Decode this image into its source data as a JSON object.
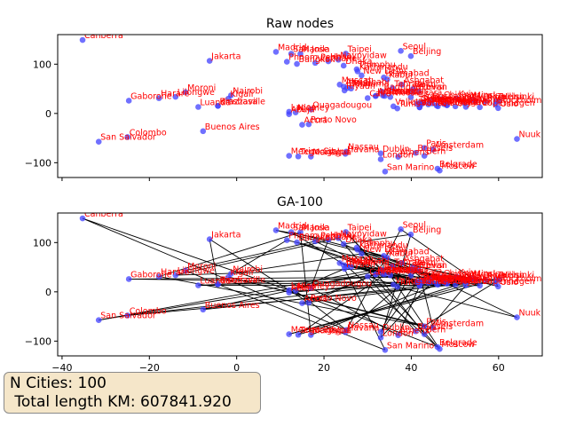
{
  "info": {
    "n_cities": "N Cities: 100",
    "total_length": " Total length KM: 607841.920"
  },
  "chart_data": [
    {
      "type": "scatter",
      "title": "Raw nodes",
      "xlim": [
        -41,
        70
      ],
      "ylim": [
        -130,
        160
      ],
      "xticks": [
        -40,
        -20,
        0,
        20,
        40,
        60
      ],
      "yticks": [
        -100,
        0,
        100
      ],
      "show_xtick_labels": false,
      "point_color": "#4040ff",
      "label_color": "#ff0000",
      "show_route": false
    },
    {
      "type": "scatter",
      "title": "GA-100",
      "xlim": [
        -41,
        70
      ],
      "ylim": [
        -130,
        160
      ],
      "xticks": [
        -40,
        -20,
        0,
        20,
        40,
        60
      ],
      "xtick_labels": [
        "−40",
        "−20",
        "0",
        "20",
        "40",
        "60"
      ],
      "yticks": [
        -100,
        0,
        100
      ],
      "show_xtick_labels": true,
      "point_color": "#4040ff",
      "label_color": "#ff0000",
      "route_color": "#000000",
      "show_route": true
    }
  ],
  "points": [
    {
      "name": "Canberra",
      "x": -35.3,
      "y": 149.1
    },
    {
      "name": "Jakarta",
      "x": -6.2,
      "y": 106.8
    },
    {
      "name": "Moroni",
      "x": -11.7,
      "y": 43.3
    },
    {
      "name": "Nairobi",
      "x": -1.3,
      "y": 36.8
    },
    {
      "name": "Lilongwe",
      "x": -14.0,
      "y": 33.8
    },
    {
      "name": "Harare",
      "x": -17.8,
      "y": 31.0
    },
    {
      "name": "Gaborone",
      "x": -24.7,
      "y": 25.9
    },
    {
      "name": "Kigali",
      "x": -1.9,
      "y": 30.1
    },
    {
      "name": "Luanda",
      "x": -8.8,
      "y": 13.2
    },
    {
      "name": "Brazzaville",
      "x": -4.3,
      "y": 15.3
    },
    {
      "name": "Kinshasa",
      "x": -4.3,
      "y": 15.3
    },
    {
      "name": "Buenos Aires",
      "x": -7.7,
      "y": -36.0
    },
    {
      "name": "Colombo",
      "x": -25.0,
      "y": -47.9
    },
    {
      "name": "San Salvador",
      "x": -31.6,
      "y": -57.4
    },
    {
      "name": "Madrid",
      "x": 9.0,
      "y": 125.0
    },
    {
      "name": "San Jose",
      "x": 12.5,
      "y": 121.2
    },
    {
      "name": "Phnom Penh",
      "x": 11.5,
      "y": 104.9
    },
    {
      "name": "Bangkok",
      "x": 13.8,
      "y": 100.5
    },
    {
      "name": "Manila",
      "x": 14.6,
      "y": 121.0
    },
    {
      "name": "Vientiane",
      "x": 18.0,
      "y": 102.6
    },
    {
      "name": "Hanoi",
      "x": 21.0,
      "y": 105.8
    },
    {
      "name": "Taipei",
      "x": 25.0,
      "y": 121.5
    },
    {
      "name": "Naypyidaw",
      "x": 23.3,
      "y": 109.0
    },
    {
      "name": "Dhaka",
      "x": 24.5,
      "y": 97.0
    },
    {
      "name": "Thimphu",
      "x": 27.5,
      "y": 89.6
    },
    {
      "name": "Kathmandu",
      "x": 27.7,
      "y": 85.3
    },
    {
      "name": "New Delhi",
      "x": 28.6,
      "y": 77.2
    },
    {
      "name": "Islamabad",
      "x": 33.7,
      "y": 73.0
    },
    {
      "name": "Kabul",
      "x": 34.5,
      "y": 69.2
    },
    {
      "name": "Seoul",
      "x": 37.6,
      "y": 127.0
    },
    {
      "name": "Beijing",
      "x": 39.9,
      "y": 116.4
    },
    {
      "name": "Abu Dhabi",
      "x": 24.5,
      "y": 54.4
    },
    {
      "name": "Muscat",
      "x": 23.6,
      "y": 58.6
    },
    {
      "name": "Doha",
      "x": 25.3,
      "y": 51.5
    },
    {
      "name": "Riyadh",
      "x": 24.7,
      "y": 46.7
    },
    {
      "name": "Manama",
      "x": 26.2,
      "y": 50.6
    },
    {
      "name": "Baghdad",
      "x": 33.3,
      "y": 44.4
    },
    {
      "name": "Ashgabat",
      "x": 37.9,
      "y": 58.4
    },
    {
      "name": "Tehran",
      "x": 35.7,
      "y": 51.4
    },
    {
      "name": "Yerevan",
      "x": 40.2,
      "y": 44.5
    },
    {
      "name": "Tbilisi",
      "x": 41.7,
      "y": 44.8
    },
    {
      "name": "Baku",
      "x": 40.4,
      "y": 49.9
    },
    {
      "name": "Jerusalem",
      "x": 31.8,
      "y": 35.2
    },
    {
      "name": "Amman",
      "x": 31.9,
      "y": 35.9
    },
    {
      "name": "Beirut",
      "x": 33.9,
      "y": 35.5
    },
    {
      "name": "Damascus",
      "x": 33.5,
      "y": 36.3
    },
    {
      "name": "Nicosia",
      "x": 35.2,
      "y": 33.4
    },
    {
      "name": "Ankara",
      "x": 39.9,
      "y": 32.9
    },
    {
      "name": "Cairo",
      "x": 30.0,
      "y": 31.2
    },
    {
      "name": "Bucharest",
      "x": 44.4,
      "y": 26.1
    },
    {
      "name": "Sofia",
      "x": 42.7,
      "y": 23.3
    },
    {
      "name": "Skopje",
      "x": 42.0,
      "y": 21.4
    },
    {
      "name": "Belgrade",
      "x": 44.8,
      "y": 20.5
    },
    {
      "name": "Chisinau",
      "x": 47.0,
      "y": 28.9
    },
    {
      "name": "Kyiv",
      "x": 50.4,
      "y": 30.5
    },
    {
      "name": "Minsk",
      "x": 53.9,
      "y": 27.6
    },
    {
      "name": "Vilnius",
      "x": 54.7,
      "y": 25.3
    },
    {
      "name": "Riga",
      "x": 56.9,
      "y": 24.1
    },
    {
      "name": "Tallinn",
      "x": 59.4,
      "y": 24.7
    },
    {
      "name": "Helsinki",
      "x": 60.2,
      "y": 24.9
    },
    {
      "name": "Stockholm",
      "x": 59.3,
      "y": 18.1
    },
    {
      "name": "Copenhagen",
      "x": 55.7,
      "y": 12.6
    },
    {
      "name": "Oslo",
      "x": 59.9,
      "y": 10.8
    },
    {
      "name": "Warsaw",
      "x": 52.2,
      "y": 21.0
    },
    {
      "name": "Budapest",
      "x": 47.5,
      "y": 19.0
    },
    {
      "name": "Bratislava",
      "x": 48.1,
      "y": 17.1
    },
    {
      "name": "Vienna",
      "x": 48.2,
      "y": 16.4
    },
    {
      "name": "Prague",
      "x": 50.1,
      "y": 14.4
    },
    {
      "name": "Berlin",
      "x": 52.5,
      "y": 13.4
    },
    {
      "name": "Ljubljana",
      "x": 46.1,
      "y": 14.5
    },
    {
      "name": "Zagreb",
      "x": 45.8,
      "y": 16.0
    },
    {
      "name": "Sarajevo",
      "x": 43.9,
      "y": 18.4
    },
    {
      "name": "Podgorica",
      "x": 42.4,
      "y": 19.3
    },
    {
      "name": "Tirana",
      "x": 41.3,
      "y": 19.8
    },
    {
      "name": "Rome",
      "x": 41.9,
      "y": 12.5
    },
    {
      "name": "Vatican City",
      "x": 41.9,
      "y": 12.45
    },
    {
      "name": "Valletta",
      "x": 35.9,
      "y": 14.5
    },
    {
      "name": "Tunis",
      "x": 36.8,
      "y": 10.2
    },
    {
      "name": "Lagos",
      "x": 12.0,
      "y": 3.4
    },
    {
      "name": "Abuja",
      "x": 12.0,
      "y": -1.5
    },
    {
      "name": "Niamey",
      "x": 13.5,
      "y": 2.1
    },
    {
      "name": "Ouagadougou",
      "x": 17.0,
      "y": 8.0
    },
    {
      "name": "Porto Novo",
      "x": 16.5,
      "y": -22.0
    },
    {
      "name": "Accra",
      "x": 15.0,
      "y": -23.0
    },
    {
      "name": "Mexico City",
      "x": 12.0,
      "y": -86.0
    },
    {
      "name": "Tegucigalpa",
      "x": 14.1,
      "y": -87.2
    },
    {
      "name": "Managua",
      "x": 17.0,
      "y": -87.5
    },
    {
      "name": "Nassau",
      "x": 25.1,
      "y": -77.3
    },
    {
      "name": "Havana",
      "x": 24.9,
      "y": -82.0
    },
    {
      "name": "Dublin",
      "x": 33.0,
      "y": -81.0
    },
    {
      "name": "London",
      "x": 33.0,
      "y": -93.0
    },
    {
      "name": "Athens",
      "x": 37.0,
      "y": -88.0
    },
    {
      "name": "Brussels",
      "x": 41.0,
      "y": -80.0
    },
    {
      "name": "Paris",
      "x": 43.0,
      "y": -70.0
    },
    {
      "name": "Amsterdam",
      "x": 45.0,
      "y": -73.0
    },
    {
      "name": "Bern",
      "x": 43.0,
      "y": -86.0
    },
    {
      "name": "San Marino",
      "x": 34.0,
      "y": -118.0
    },
    {
      "name": "Belgrade",
      "x": 46.0,
      "y": -112.0
    },
    {
      "name": "Moscow",
      "x": 46.5,
      "y": -116.0
    },
    {
      "name": "Nuuk",
      "x": 64.2,
      "y": -51.7
    }
  ]
}
